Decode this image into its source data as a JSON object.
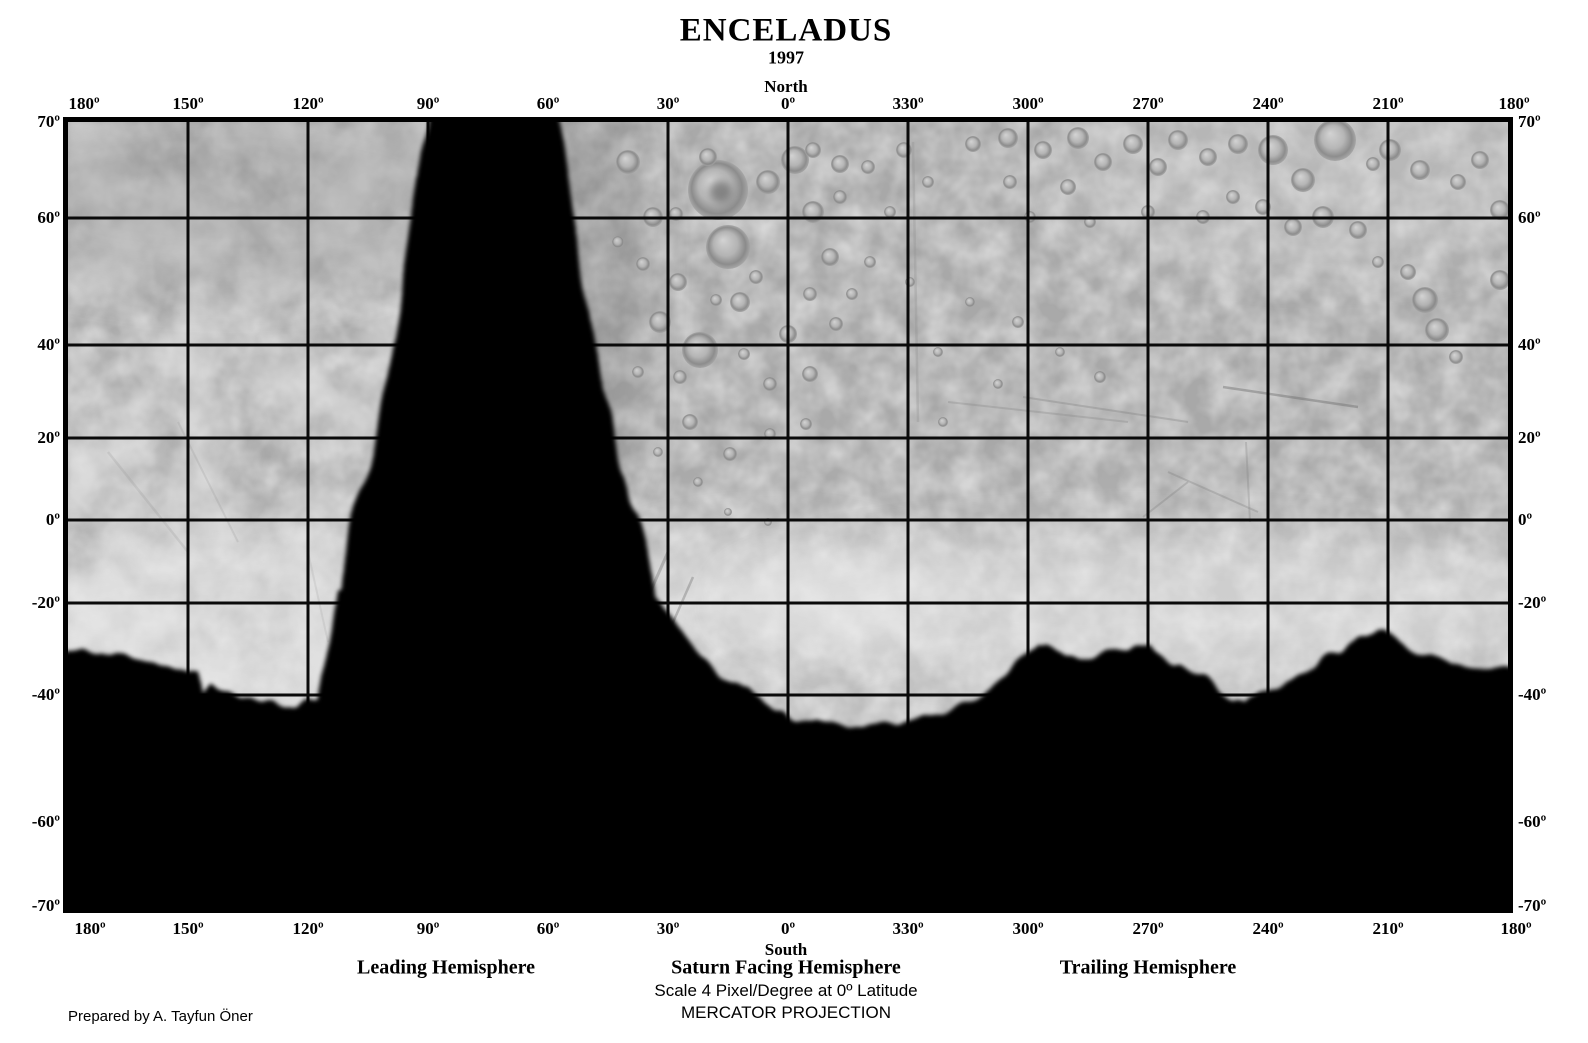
{
  "title": {
    "name": "ENCELADUS",
    "year": "1997"
  },
  "orientation": {
    "north": "North",
    "south": "South"
  },
  "axes": {
    "longitude_labels": [
      "180º",
      "150º",
      "120º",
      "90º",
      "60º",
      "30º",
      "0º",
      "330º",
      "300º",
      "270º",
      "240º",
      "210º",
      "180º"
    ],
    "latitude_labels": [
      "70º",
      "60º",
      "40º",
      "20º",
      "0º",
      "-20º",
      "-40º",
      "-60º",
      "-70º"
    ]
  },
  "legend": {
    "hemispheres": [
      "Leading Hemisphere",
      "Saturn Facing Hemisphere",
      "Trailing Hemisphere"
    ],
    "scale_note": "Scale 4 Pixel/Degree at 0º Latitude",
    "projection": "MERCATOR PROJECTION",
    "credit": "Prepared by A. Tayfun Öner"
  },
  "colors": {
    "background": "#ffffff",
    "ink": "#000000",
    "terrain_base": "#a8a8a8",
    "no_data": "#000000"
  }
}
